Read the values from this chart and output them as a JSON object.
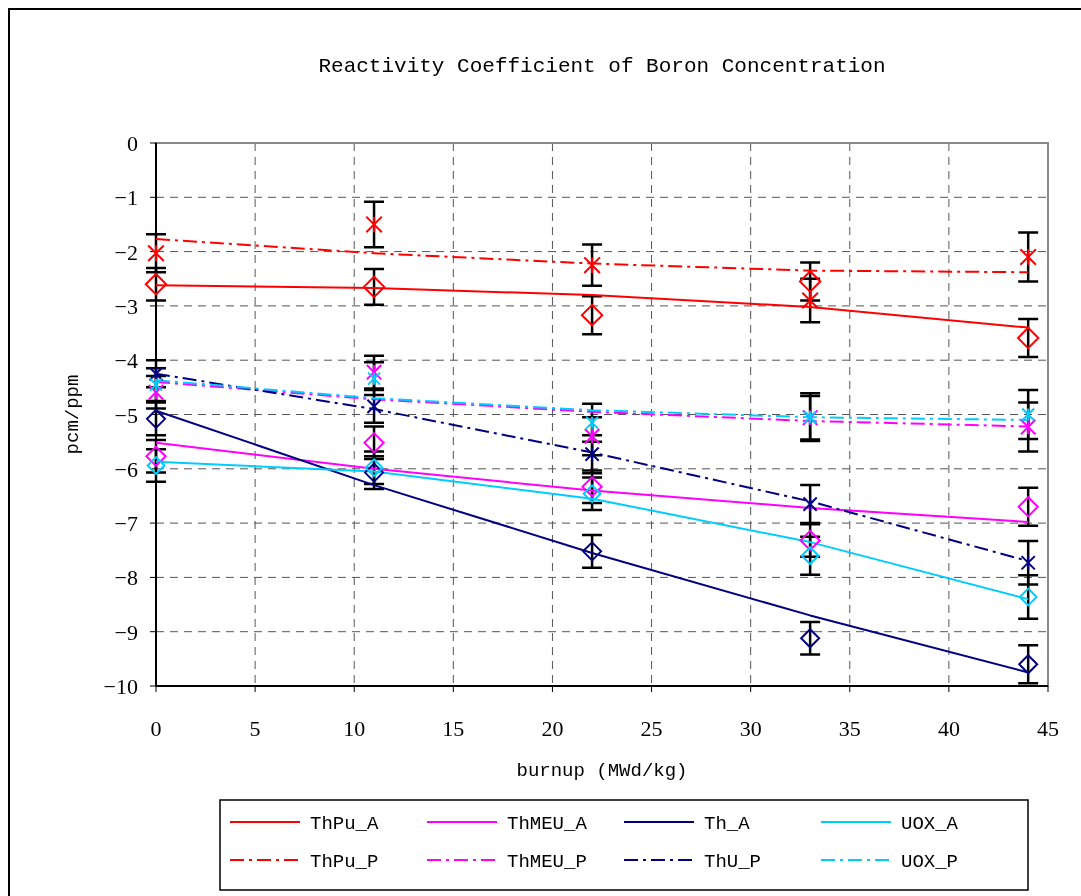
{
  "chart_data": {
    "type": "line",
    "title": "Reactivity Coefficient of Boron Concentration",
    "xlabel": "burnup (MWd/kg)",
    "ylabel": "pcm/ppm",
    "xlim": [
      0,
      45
    ],
    "xticks": [
      0,
      5,
      10,
      15,
      20,
      25,
      30,
      35,
      40,
      45
    ],
    "ylim": [
      -10,
      0
    ],
    "yticks": [
      -10,
      -9,
      -8,
      -7,
      -6,
      -5,
      -4,
      -3,
      -2,
      -1,
      0
    ],
    "grid": true,
    "legend": "bottom",
    "series": [
      {
        "name": "ThPu_A",
        "color": "#ff0000",
        "line_style": "solid",
        "marker": "none",
        "x": [
          0,
          11,
          22,
          33,
          44
        ],
        "values": [
          -2.62,
          -2.67,
          -2.8,
          -3.02,
          -3.4
        ]
      },
      {
        "name": "ThMEU_A",
        "color": "#ff00ff",
        "line_style": "solid",
        "marker": "none",
        "x": [
          0,
          11,
          22,
          33,
          44
        ],
        "values": [
          -5.52,
          -6.0,
          -6.4,
          -6.72,
          -6.98
        ]
      },
      {
        "name": "Th_A",
        "color": "#000080",
        "line_style": "solid",
        "marker": "none",
        "x": [
          0,
          11,
          22,
          33,
          44
        ],
        "values": [
          -4.93,
          -6.3,
          -7.55,
          -8.7,
          -9.75
        ]
      },
      {
        "name": "UOX_A",
        "color": "#00ccff",
        "line_style": "solid",
        "marker": "none",
        "x": [
          0,
          11,
          22,
          33,
          44
        ],
        "values": [
          -5.87,
          -6.05,
          -6.55,
          -7.35,
          -8.4
        ]
      },
      {
        "name": "ThPu_P",
        "color": "#ff0000",
        "line_style": "dashed",
        "marker": "none",
        "x": [
          0,
          11,
          22,
          33,
          44
        ],
        "values": [
          -1.77,
          -2.03,
          -2.22,
          -2.35,
          -2.38
        ]
      },
      {
        "name": "ThMEU_P",
        "color": "#ff00ff",
        "line_style": "dashed",
        "marker": "none",
        "x": [
          0,
          11,
          22,
          33,
          44
        ],
        "values": [
          -4.4,
          -4.72,
          -4.95,
          -5.12,
          -5.22
        ]
      },
      {
        "name": "ThU_P",
        "color": "#000080",
        "line_style": "dashed",
        "marker": "none",
        "x": [
          0,
          11,
          22,
          33,
          44
        ],
        "values": [
          -4.25,
          -4.9,
          -5.7,
          -6.6,
          -7.7
        ]
      },
      {
        "name": "UOX_P",
        "color": "#00ccff",
        "line_style": "dashed",
        "marker": "none",
        "x": [
          0,
          11,
          22,
          33,
          44
        ],
        "values": [
          -4.37,
          -4.7,
          -4.92,
          -5.05,
          -5.1
        ]
      },
      {
        "type": "scatter",
        "color": "#ff0000",
        "marker": "diamond",
        "x": [
          0,
          11,
          22,
          33,
          44
        ],
        "values": [
          -2.6,
          -2.65,
          -3.17,
          -2.55,
          -3.59
        ],
        "errors": [
          0.3,
          0.33,
          0.35,
          0.35,
          0.35
        ]
      },
      {
        "type": "scatter",
        "color": "#ff00ff",
        "marker": "diamond",
        "x": [
          0,
          11,
          22,
          33,
          44
        ],
        "values": [
          -5.77,
          -5.52,
          -6.33,
          -7.32,
          -6.7
        ],
        "errors": [
          0.3,
          0.3,
          0.3,
          0.3,
          0.35
        ]
      },
      {
        "type": "scatter",
        "color": "#000080",
        "marker": "diamond",
        "x": [
          0,
          11,
          22,
          33,
          44
        ],
        "values": [
          -5.08,
          -6.07,
          -7.52,
          -9.12,
          -9.6
        ],
        "errors": [
          0.3,
          0.3,
          0.3,
          0.3,
          0.35
        ]
      },
      {
        "type": "scatter",
        "color": "#00ccff",
        "marker": "diamond",
        "x": [
          0,
          11,
          22,
          33,
          44
        ],
        "values": [
          -5.94,
          -5.98,
          -6.46,
          -7.6,
          -8.36
        ],
        "errors": [
          0.3,
          0.3,
          0.3,
          0.35,
          0.4
        ]
      },
      {
        "type": "scatter",
        "color": "#ff0000",
        "marker": "cross",
        "x": [
          0,
          11,
          22,
          33,
          44
        ],
        "values": [
          -2.03,
          -1.5,
          -2.25,
          -2.9,
          -2.1
        ],
        "errors": [
          0.35,
          0.42,
          0.38,
          0.4,
          0.45
        ]
      },
      {
        "type": "scatter",
        "color": "#ff00ff",
        "marker": "cross",
        "x": [
          0,
          11,
          22,
          33,
          44
        ],
        "values": [
          -4.59,
          -4.22,
          -5.4,
          -5.06,
          -5.23
        ],
        "errors": [
          0.3,
          0.3,
          0.35,
          0.4,
          0.45
        ]
      },
      {
        "type": "scatter",
        "color": "#000080",
        "marker": "cross",
        "x": [
          0,
          11,
          22,
          33,
          44
        ],
        "values": [
          -4.25,
          -4.85,
          -5.73,
          -6.65,
          -7.73
        ],
        "errors": [
          0.25,
          0.3,
          0.35,
          0.35,
          0.4
        ]
      },
      {
        "type": "scatter",
        "color": "#00ccff",
        "marker": "cross",
        "x": [
          0,
          11,
          22,
          33,
          44
        ],
        "values": [
          -4.45,
          -4.34,
          -5.15,
          -5.05,
          -5.0
        ],
        "errors": [
          0.3,
          0.3,
          0.35,
          0.44,
          0.45
        ]
      }
    ]
  }
}
